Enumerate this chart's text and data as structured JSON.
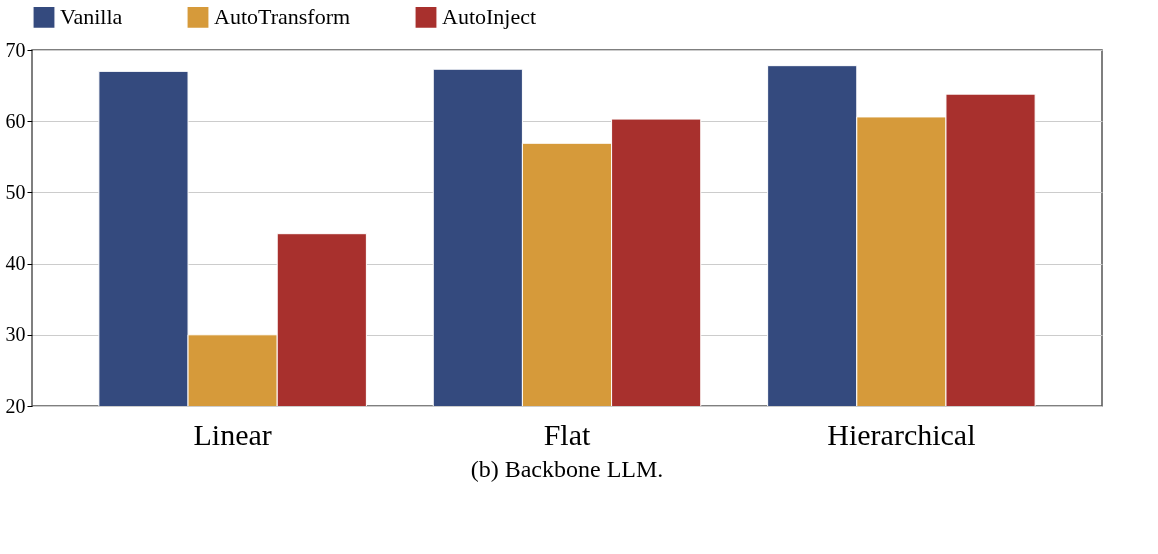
{
  "chart_data": {
    "type": "bar",
    "categories": [
      "Linear",
      "Flat",
      "Hierarchical"
    ],
    "series": [
      {
        "name": "Vanilla",
        "color": "#344a7e",
        "values": [
          67.0,
          67.3,
          67.8
        ]
      },
      {
        "name": "AutoTransform",
        "color": "#d69a3a",
        "values": [
          30.0,
          56.9,
          60.6
        ]
      },
      {
        "name": "AutoInject",
        "color": "#a8302d",
        "values": [
          44.2,
          60.3,
          63.8
        ]
      }
    ],
    "ylim": [
      20,
      70
    ],
    "yticks": [
      20,
      30,
      40,
      50,
      60,
      70
    ],
    "grid": "y",
    "legend": "top",
    "annotations": [
      "(b) Backbone LLM."
    ]
  }
}
